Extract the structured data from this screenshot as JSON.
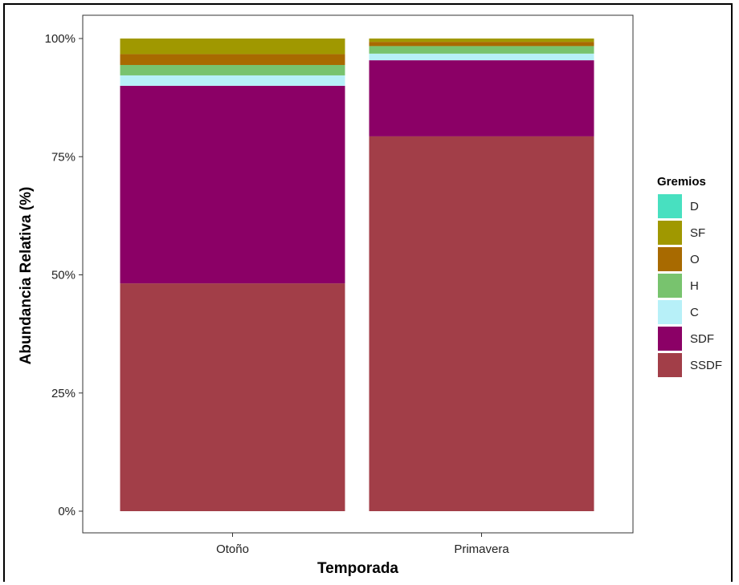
{
  "chart_data": {
    "type": "bar",
    "stacked": true,
    "categories": [
      "Otoño",
      "Primavera"
    ],
    "series": [
      {
        "name": "SSDF",
        "color": "#A23E48",
        "values": [
          48.2,
          79.3
        ]
      },
      {
        "name": "SDF",
        "color": "#8B0066",
        "values": [
          41.8,
          16.1
        ]
      },
      {
        "name": "C",
        "color": "#B7F0F8",
        "values": [
          2.2,
          1.4
        ]
      },
      {
        "name": "H",
        "color": "#78C36E",
        "values": [
          2.2,
          1.6
        ]
      },
      {
        "name": "O",
        "color": "#A86A00",
        "values": [
          2.3,
          0.9
        ]
      },
      {
        "name": "SF",
        "color": "#A09800",
        "values": [
          3.3,
          0.7
        ]
      },
      {
        "name": "D",
        "color": "#48E0C0",
        "values": [
          0,
          0
        ]
      }
    ],
    "legend_order": [
      "D",
      "SF",
      "O",
      "H",
      "C",
      "SDF",
      "SSDF"
    ],
    "legend_title": "Gremios",
    "legend_position": "right",
    "xlabel": "Temporada",
    "ylabel": "Abundancia Relativa (%)",
    "ylim": [
      0,
      100
    ],
    "yticks": [
      0,
      25,
      50,
      75,
      100
    ],
    "ytick_labels": [
      "0%",
      "25%",
      "50%",
      "75%",
      "100%"
    ],
    "grid": false
  }
}
